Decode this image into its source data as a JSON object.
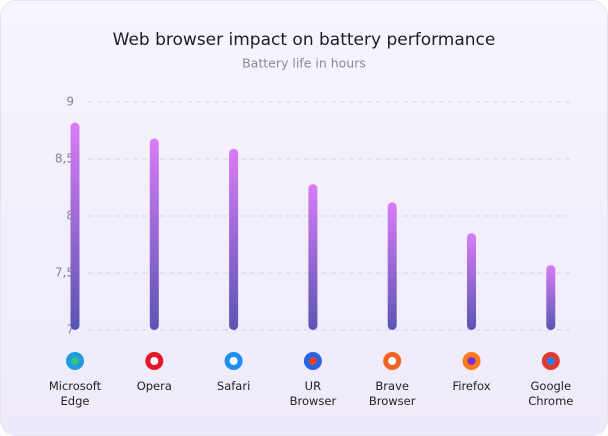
{
  "chart_data": {
    "type": "bar",
    "title": "Web browser impact on battery performance",
    "subtitle": "Battery life in hours",
    "categories": [
      "Microsoft Edge",
      "Opera",
      "Safari",
      "UR Browser",
      "Brave Browser",
      "Firefox",
      "Google Chrome"
    ],
    "values": [
      8.82,
      8.68,
      8.59,
      8.28,
      8.12,
      7.85,
      7.57
    ],
    "gradient": [
      "#d97cf7",
      "#5a55b3"
    ],
    "ylim": [
      7,
      9
    ],
    "yticks": [
      7,
      {
        "value": 7.5,
        "label": "7,5"
      },
      8,
      {
        "value": 8.5,
        "label": "8,5"
      },
      9
    ],
    "grid": true
  }
}
